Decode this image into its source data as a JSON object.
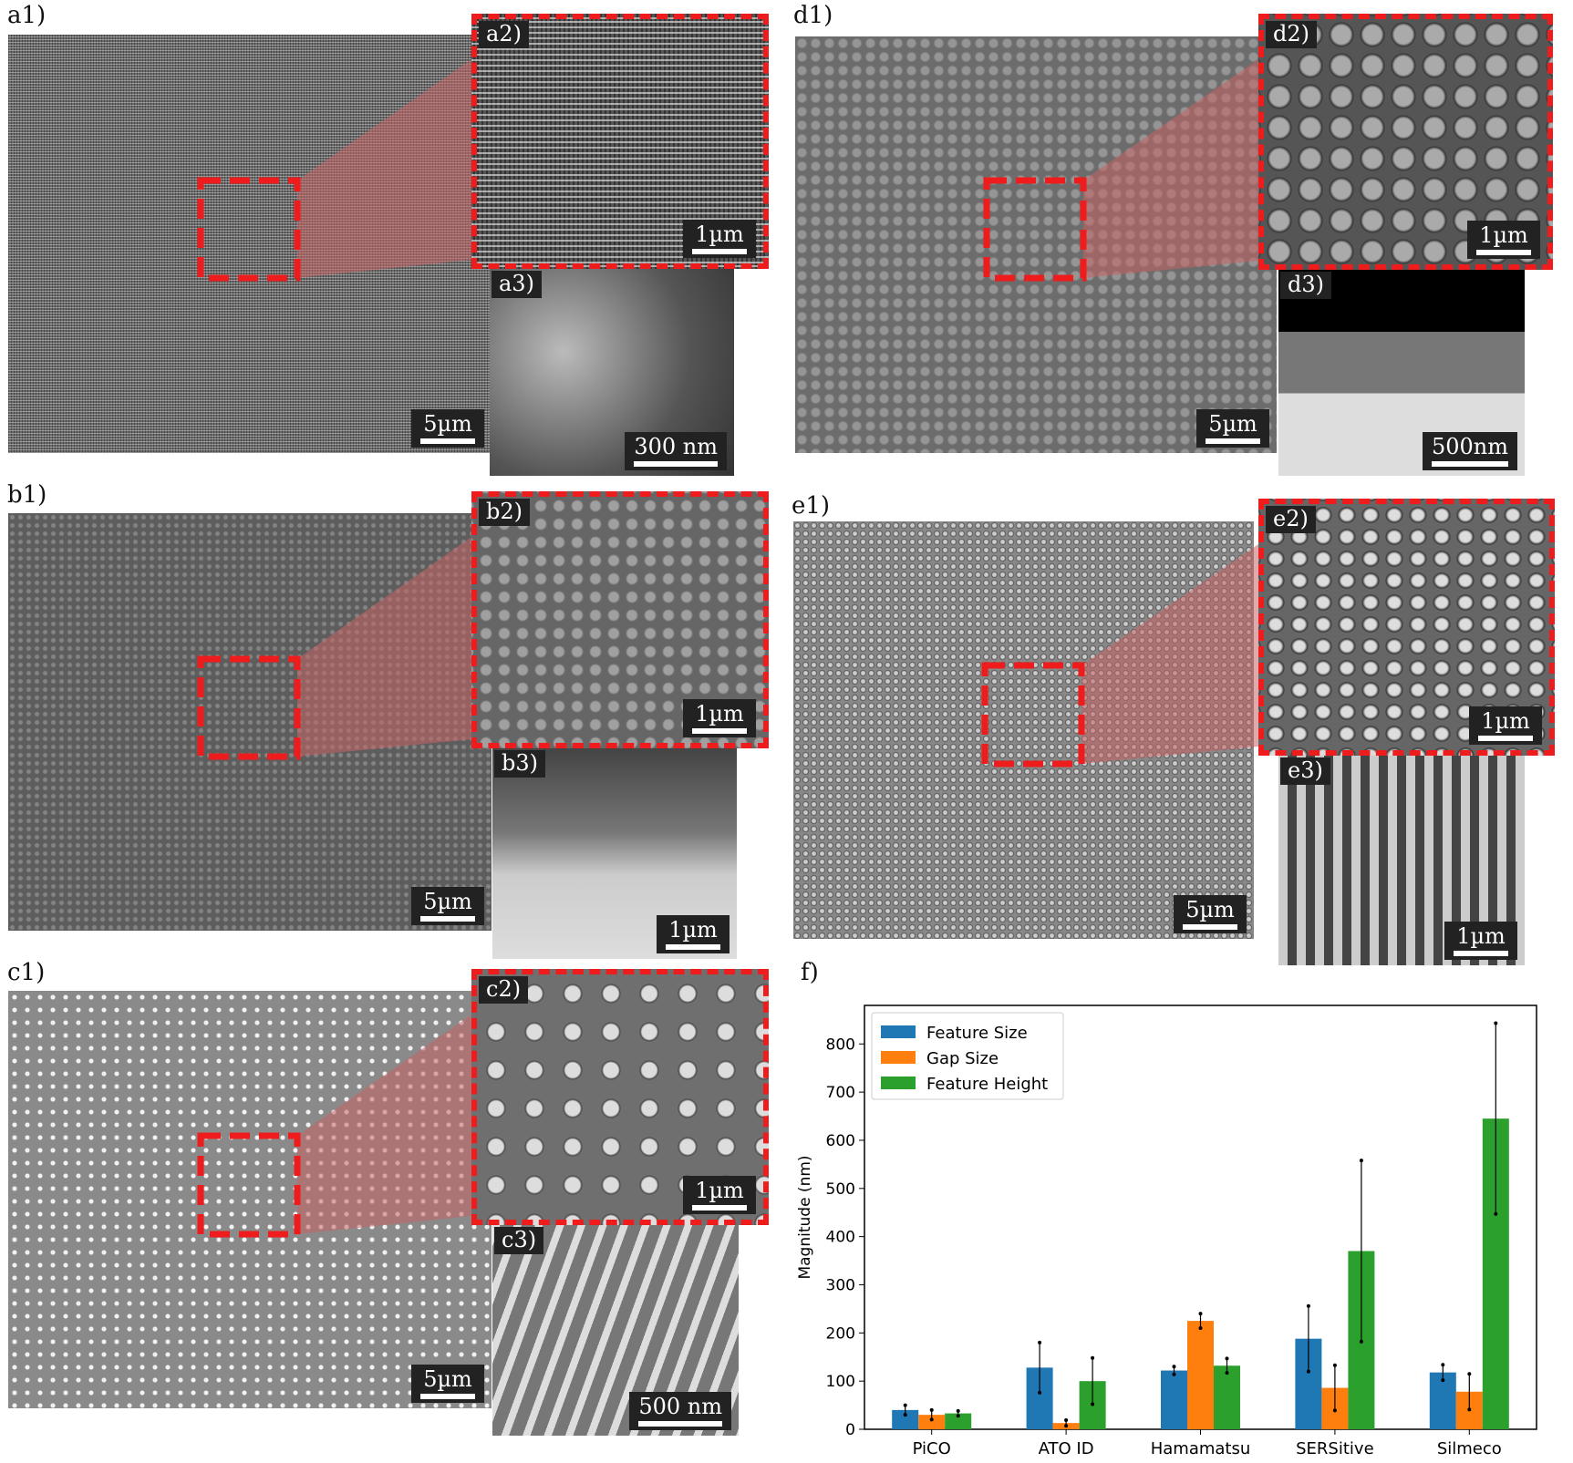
{
  "panels": {
    "a1": {
      "label": "a1)",
      "scale": "5µm"
    },
    "a2": {
      "label": "a2)",
      "scale": "1µm"
    },
    "a3": {
      "label": "a3)",
      "scale": "300 nm"
    },
    "b1": {
      "label": "b1)",
      "scale": "5µm"
    },
    "b2": {
      "label": "b2)",
      "scale": "1µm"
    },
    "b3": {
      "label": "b3)",
      "scale": "1µm"
    },
    "c1": {
      "label": "c1)",
      "scale": "5µm"
    },
    "c2": {
      "label": "c2)",
      "scale": "1µm"
    },
    "c3": {
      "label": "c3)",
      "scale": "500 nm"
    },
    "d1": {
      "label": "d1)",
      "scale": "5µm"
    },
    "d2": {
      "label": "d2)",
      "scale": "1µm"
    },
    "d3": {
      "label": "d3)",
      "scale": "500nm"
    },
    "e1": {
      "label": "e1)",
      "scale": "5µm"
    },
    "e2": {
      "label": "e2)",
      "scale": "1µm"
    },
    "e3": {
      "label": "e3)",
      "scale": "1µm"
    },
    "f": {
      "label": "f)"
    }
  },
  "colors": {
    "inset_border": "#ee1c1c",
    "zoom_wedge": "#c86464"
  },
  "chart_data": {
    "type": "bar",
    "categories": [
      "PiCO",
      "ATO ID",
      "Hamamatsu",
      "SERSitive",
      "Silmeco"
    ],
    "series": [
      {
        "name": "Feature Size",
        "color": "#1f77b4",
        "values": [
          40,
          128,
          122,
          188,
          118
        ],
        "errors": [
          10,
          52,
          8,
          68,
          16
        ]
      },
      {
        "name": "Gap Size",
        "color": "#ff7f0e",
        "values": [
          30,
          13,
          225,
          86,
          78
        ],
        "errors": [
          10,
          6,
          15,
          47,
          37
        ]
      },
      {
        "name": "Feature Height",
        "color": "#2ca02c",
        "values": [
          33,
          100,
          132,
          370,
          645
        ],
        "errors": [
          5,
          48,
          15,
          188,
          198
        ]
      }
    ],
    "xlabel": "",
    "ylabel": "Magnitude (nm)",
    "ylim": [
      0,
      880
    ],
    "yticks": [
      0,
      100,
      200,
      300,
      400,
      500,
      600,
      700,
      800
    ],
    "grid": false,
    "legend": "top-left"
  }
}
